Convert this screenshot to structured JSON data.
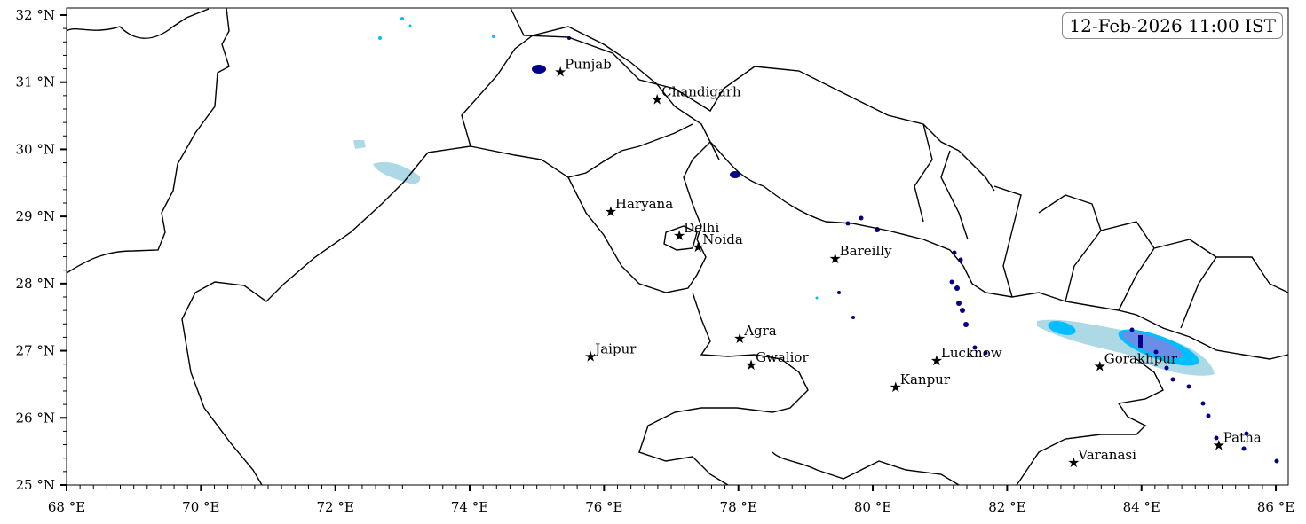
{
  "timestamp": "12-Feb-2026 11:00 IST",
  "map": {
    "lon_range": [
      68,
      86.18
    ],
    "lat_range": [
      25,
      32.1
    ],
    "x_ticks": [
      68,
      70,
      72,
      74,
      76,
      78,
      80,
      82,
      84,
      86
    ],
    "y_ticks": [
      25,
      26,
      27,
      28,
      29,
      30,
      31,
      32
    ],
    "x_tick_suffix": " °E",
    "y_tick_suffix": " °N",
    "minor_tick_step": 0.2,
    "precip_colors": [
      "#add8e6",
      "#00bfff",
      "#6a8ee6",
      "#00008b"
    ],
    "cities": [
      {
        "name": "Punjab",
        "lon": 75.35,
        "lat": 31.15
      },
      {
        "name": "Chandigarh",
        "lon": 76.79,
        "lat": 30.74
      },
      {
        "name": "Haryana",
        "lon": 76.1,
        "lat": 29.07
      },
      {
        "name": "Delhi",
        "lon": 77.12,
        "lat": 28.71
      },
      {
        "name": "Noida",
        "lon": 77.4,
        "lat": 28.54
      },
      {
        "name": "Bareilly",
        "lon": 79.44,
        "lat": 28.37
      },
      {
        "name": "Agra",
        "lon": 78.02,
        "lat": 27.18
      },
      {
        "name": "Jaipur",
        "lon": 75.8,
        "lat": 26.91
      },
      {
        "name": "Gwalior",
        "lon": 78.19,
        "lat": 26.78
      },
      {
        "name": "Lucknow",
        "lon": 80.95,
        "lat": 26.85
      },
      {
        "name": "Kanpur",
        "lon": 80.34,
        "lat": 26.45
      },
      {
        "name": "Gorakhpur",
        "lon": 83.38,
        "lat": 26.76
      },
      {
        "name": "Varanasi",
        "lon": 82.99,
        "lat": 25.33
      },
      {
        "name": "Patna",
        "lon": 85.15,
        "lat": 25.59
      }
    ]
  }
}
